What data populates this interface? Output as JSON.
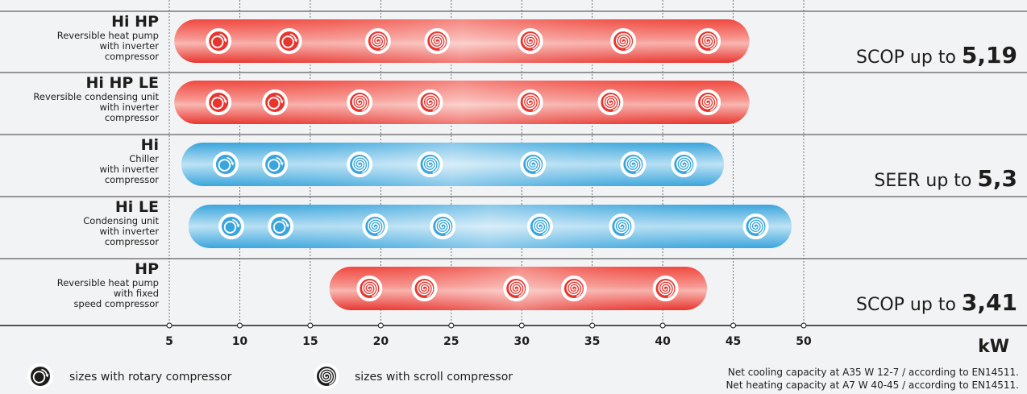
{
  "chart_data": {
    "type": "range-bar",
    "unit_label": "kW",
    "x_ticks": [
      5,
      10,
      15,
      20,
      25,
      30,
      35,
      40,
      45,
      50
    ],
    "colors": {
      "heat_pump": "#e8362f",
      "chiller": "#3aa5dc"
    },
    "rows": [
      {
        "title": "Hi  HP",
        "description": [
          "Reversible heat pump",
          "with inverter",
          "compressor"
        ],
        "color": "heat_pump",
        "range": [
          6.5,
          45
        ],
        "sizes": [
          {
            "kw": 8.5,
            "compressor": "rotary"
          },
          {
            "kw": 13.5,
            "compressor": "rotary"
          },
          {
            "kw": 19.8,
            "compressor": "scroll"
          },
          {
            "kw": 24,
            "compressor": "scroll"
          },
          {
            "kw": 30.6,
            "compressor": "scroll"
          },
          {
            "kw": 37.2,
            "compressor": "scroll"
          },
          {
            "kw": 43.2,
            "compressor": "scroll"
          }
        ],
        "efficiency": {
          "prefix": "SCOP up to",
          "value": "5,19"
        }
      },
      {
        "title": "Hi  HP LE",
        "description": [
          "Reversible condensing unit",
          "with inverter",
          "compressor"
        ],
        "color": "heat_pump",
        "range": [
          6.5,
          45
        ],
        "sizes": [
          {
            "kw": 8.5,
            "compressor": "rotary"
          },
          {
            "kw": 12.5,
            "compressor": "rotary"
          },
          {
            "kw": 18.5,
            "compressor": "scroll"
          },
          {
            "kw": 23.5,
            "compressor": "scroll"
          },
          {
            "kw": 30.6,
            "compressor": "scroll"
          },
          {
            "kw": 36.3,
            "compressor": "scroll"
          },
          {
            "kw": 43.2,
            "compressor": "scroll"
          }
        ],
        "efficiency": {
          "prefix": "",
          "value": ""
        }
      },
      {
        "title": "Hi",
        "description": [
          "Chiller",
          "with inverter",
          "compressor"
        ],
        "color": "chiller",
        "range": [
          7,
          43.2
        ],
        "sizes": [
          {
            "kw": 9,
            "compressor": "rotary"
          },
          {
            "kw": 12.5,
            "compressor": "rotary"
          },
          {
            "kw": 18.5,
            "compressor": "scroll"
          },
          {
            "kw": 23.5,
            "compressor": "scroll"
          },
          {
            "kw": 30.8,
            "compressor": "scroll"
          },
          {
            "kw": 37.9,
            "compressor": "scroll"
          },
          {
            "kw": 41.5,
            "compressor": "scroll"
          }
        ],
        "efficiency": {
          "prefix": "SEER up to",
          "value": "5,3"
        }
      },
      {
        "title": "Hi LE",
        "description": [
          "Condensing unit",
          "with inverter",
          "compressor"
        ],
        "color": "chiller",
        "range": [
          7.5,
          48
        ],
        "sizes": [
          {
            "kw": 9.4,
            "compressor": "rotary"
          },
          {
            "kw": 12.9,
            "compressor": "rotary"
          },
          {
            "kw": 19.6,
            "compressor": "scroll"
          },
          {
            "kw": 24.4,
            "compressor": "scroll"
          },
          {
            "kw": 31.3,
            "compressor": "scroll"
          },
          {
            "kw": 37.1,
            "compressor": "scroll"
          },
          {
            "kw": 46.6,
            "compressor": "scroll"
          }
        ],
        "efficiency": {
          "prefix": "",
          "value": ""
        }
      },
      {
        "title": "HP",
        "description": [
          "Reversible heat pump",
          "with fixed",
          "speed compressor"
        ],
        "color": "heat_pump",
        "range": [
          17.5,
          42
        ],
        "sizes": [
          {
            "kw": 19.2,
            "compressor": "scroll"
          },
          {
            "kw": 23.1,
            "compressor": "scroll"
          },
          {
            "kw": 29.6,
            "compressor": "scroll"
          },
          {
            "kw": 33.7,
            "compressor": "scroll"
          },
          {
            "kw": 40.2,
            "compressor": "scroll"
          }
        ],
        "efficiency": {
          "prefix": "SCOP up to",
          "value": "3,41"
        }
      }
    ],
    "legend": {
      "rotary": "sizes with rotary compressor",
      "scroll": "sizes with scroll compressor"
    },
    "notes": [
      "Net cooling capacity at A35 W 12-7 / according to EN14511.",
      "Net heating capacity at A7 W 40-45 / according to EN14511."
    ]
  }
}
